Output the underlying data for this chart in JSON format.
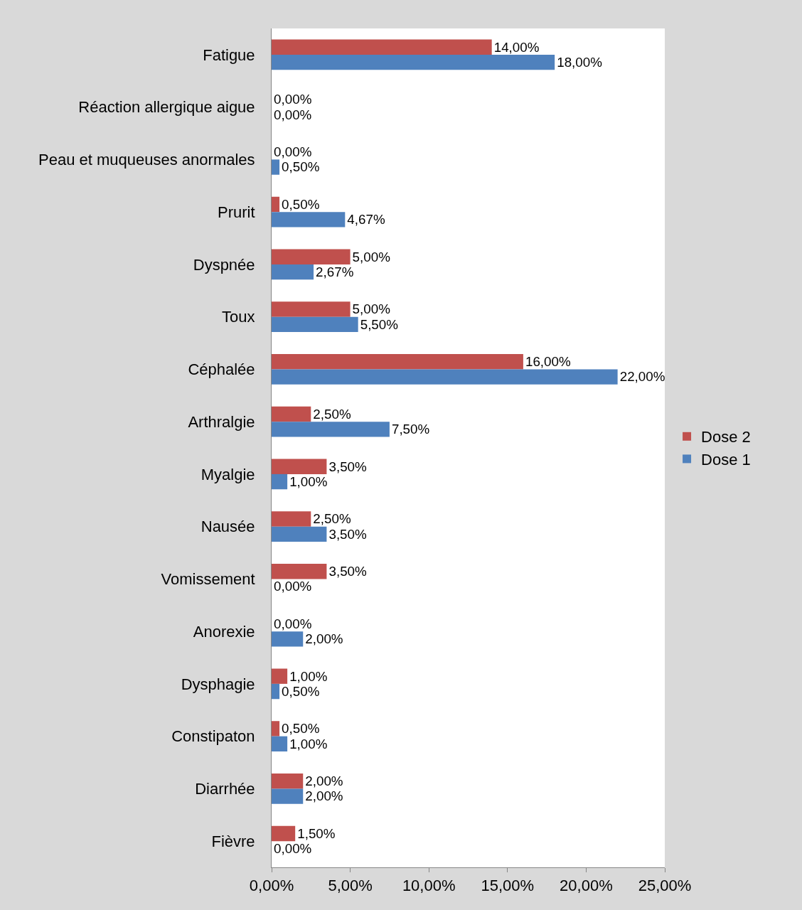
{
  "chart_data": {
    "type": "bar",
    "orientation": "horizontal",
    "categories": [
      "Fatigue",
      "Réaction allergique aigue",
      "Peau et muqueuses anormales",
      "Prurit",
      "Dyspnée",
      "Toux",
      "Céphalée",
      "Arthralgie",
      "Myalgie",
      "Nausée",
      "Vomissement",
      "Anorexie",
      "Dysphagie",
      "Constipaton",
      "Diarrhée",
      "Fièvre"
    ],
    "series": [
      {
        "name": "Dose 2",
        "color": "#c0504d",
        "values": [
          14,
          0,
          0,
          0.5,
          5,
          5,
          16,
          2.5,
          3.5,
          2.5,
          3.5,
          0,
          1,
          0.5,
          2,
          1.5
        ],
        "value_labels": [
          "14,00%",
          "0,00%",
          "0,00%",
          "0,50%",
          "5,00%",
          "5,00%",
          "16,00%",
          "2,50%",
          "3,50%",
          "2,50%",
          "3,50%",
          "0,00%",
          "1,00%",
          "0,50%",
          "2,00%",
          "1,50%"
        ]
      },
      {
        "name": "Dose 1",
        "color": "#4f81bd",
        "values": [
          18,
          0,
          0.5,
          4.67,
          2.67,
          5.5,
          22,
          7.5,
          1,
          3.5,
          0,
          2,
          0.5,
          1,
          2,
          0
        ],
        "value_labels": [
          "18,00%",
          "0,00%",
          "0,50%",
          "4,67%",
          "2,67%",
          "5,50%",
          "22,00%",
          "7,50%",
          "1,00%",
          "3,50%",
          "0,00%",
          "2,00%",
          "0,50%",
          "1,00%",
          "2,00%",
          "0,00%"
        ]
      }
    ],
    "xlim": [
      0,
      25
    ],
    "xticks": [
      {
        "value": 0,
        "label": "0,00%"
      },
      {
        "value": 5,
        "label": "5,00%"
      },
      {
        "value": 10,
        "label": "10,00%"
      },
      {
        "value": 15,
        "label": "15,00%"
      },
      {
        "value": 20,
        "label": "20,00%"
      },
      {
        "value": 25,
        "label": "25,00%"
      }
    ],
    "grid": false,
    "legend": "right"
  }
}
